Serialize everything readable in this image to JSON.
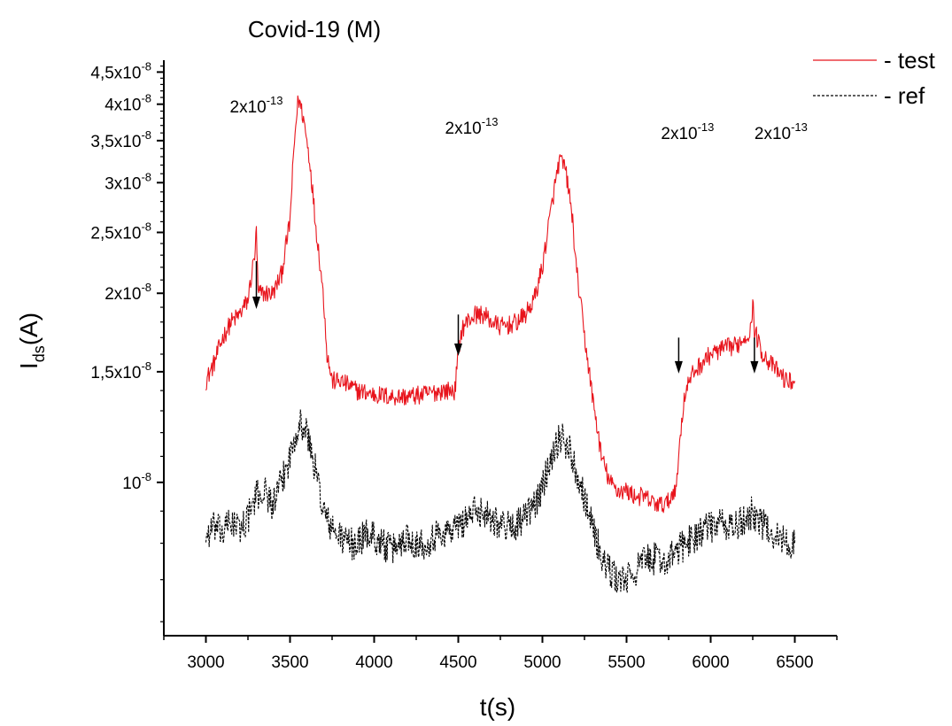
{
  "chart_data": {
    "type": "line",
    "title": "Covid-19 (M)",
    "xlabel": "t(s)",
    "ylabel": "I",
    "ylabel_sub": "ds",
    "ylabel_suffix": "(A)",
    "y_scale": "log",
    "xlim": [
      2750,
      6750
    ],
    "ylim": [
      5.7e-09,
      4.7e-08
    ],
    "grid": false,
    "legend_position": "top-right",
    "x_ticks": [
      3000,
      3500,
      4000,
      4500,
      5000,
      5500,
      6000,
      6500
    ],
    "x_tick_labels": [
      "3000",
      "3500",
      "4000",
      "4500",
      "5000",
      "5500",
      "6000",
      "6500"
    ],
    "y_ticks": [
      {
        "value": 1e-08,
        "mantissa": "10",
        "exponent": "-8"
      },
      {
        "value": 1.5e-08,
        "mantissa": "1,5x10",
        "exponent": "-8"
      },
      {
        "value": 2e-08,
        "mantissa": "2x10",
        "exponent": "-8"
      },
      {
        "value": 2.5e-08,
        "mantissa": "2,5x10",
        "exponent": "-8"
      },
      {
        "value": 3e-08,
        "mantissa": "3x10",
        "exponent": "-8"
      },
      {
        "value": 3.5e-08,
        "mantissa": "3,5x10",
        "exponent": "-8"
      },
      {
        "value": 4e-08,
        "mantissa": "4x10",
        "exponent": "-8"
      },
      {
        "value": 4.5e-08,
        "mantissa": "4,5x10",
        "exponent": "-8"
      }
    ],
    "annotations": [
      {
        "mantissa": "2x10",
        "exponent": "-13",
        "x": 3300,
        "arrow_from": 2.25e-08,
        "arrow_to": 1.9e-08
      },
      {
        "mantissa": "2x10",
        "exponent": "-13",
        "x": 4500,
        "arrow_from": 1.85e-08,
        "arrow_to": 1.6e-08
      },
      {
        "mantissa": "2x10",
        "exponent": "-13",
        "x": 5810,
        "arrow_from": 1.7e-08,
        "arrow_to": 1.5e-08
      },
      {
        "mantissa": "2x10",
        "exponent": "-13",
        "x": 6260,
        "arrow_from": 1.7e-08,
        "arrow_to": 1.5e-08
      }
    ],
    "series": [
      {
        "name": "- test",
        "color": "#e8141c",
        "style": "solid",
        "x": [
          3000,
          3050,
          3100,
          3150,
          3200,
          3250,
          3290,
          3300,
          3310,
          3350,
          3400,
          3450,
          3500,
          3530,
          3550,
          3580,
          3620,
          3650,
          3700,
          3720,
          3750,
          3800,
          3900,
          4000,
          4100,
          4200,
          4300,
          4400,
          4480,
          4500,
          4520,
          4550,
          4600,
          4650,
          4700,
          4750,
          4800,
          4850,
          4900,
          4950,
          5000,
          5050,
          5100,
          5130,
          5150,
          5180,
          5200,
          5250,
          5300,
          5350,
          5400,
          5450,
          5500,
          5550,
          5600,
          5650,
          5700,
          5750,
          5800,
          5820,
          5850,
          5900,
          5950,
          6000,
          6050,
          6100,
          6150,
          6200,
          6240,
          6250,
          6260,
          6300,
          6350,
          6400,
          6450,
          6500
        ],
        "y": [
          1.45e-08,
          1.55e-08,
          1.7e-08,
          1.8e-08,
          1.85e-08,
          1.95e-08,
          2.3e-08,
          2.5e-08,
          2e-08,
          2e-08,
          2e-08,
          2.15e-08,
          2.6e-08,
          3.6e-08,
          4.1e-08,
          3.8e-08,
          3.2e-08,
          2.6e-08,
          1.95e-08,
          1.6e-08,
          1.45e-08,
          1.45e-08,
          1.4e-08,
          1.38e-08,
          1.37e-08,
          1.37e-08,
          1.38e-08,
          1.4e-08,
          1.4e-08,
          1.6e-08,
          1.75e-08,
          1.8e-08,
          1.85e-08,
          1.85e-08,
          1.8e-08,
          1.77e-08,
          1.78e-08,
          1.8e-08,
          1.85e-08,
          1.95e-08,
          2.2e-08,
          2.7e-08,
          3.25e-08,
          3.2e-08,
          3e-08,
          2.6e-08,
          2.2e-08,
          1.7e-08,
          1.35e-08,
          1.1e-08,
          1e-08,
          9.7e-09,
          9.7e-09,
          9.5e-09,
          9.5e-09,
          9.3e-09,
          9.2e-09,
          9.3e-09,
          1e-08,
          1.2e-08,
          1.4e-08,
          1.5e-08,
          1.55e-08,
          1.6e-08,
          1.62e-08,
          1.64e-08,
          1.65e-08,
          1.7e-08,
          1.75e-08,
          1.95e-08,
          1.75e-08,
          1.62e-08,
          1.55e-08,
          1.5e-08,
          1.45e-08,
          1.45e-08
        ]
      },
      {
        "name": "- ref",
        "color": "#000000",
        "style": "dashed",
        "x": [
          3000,
          3050,
          3100,
          3150,
          3200,
          3250,
          3300,
          3350,
          3400,
          3450,
          3500,
          3550,
          3600,
          3650,
          3700,
          3750,
          3800,
          3850,
          3900,
          3950,
          4000,
          4050,
          4100,
          4150,
          4200,
          4250,
          4300,
          4350,
          4400,
          4450,
          4500,
          4550,
          4600,
          4650,
          4700,
          4750,
          4800,
          4850,
          4900,
          4950,
          5000,
          5050,
          5100,
          5150,
          5200,
          5250,
          5300,
          5350,
          5400,
          5450,
          5500,
          5550,
          5600,
          5650,
          5700,
          5750,
          5800,
          5850,
          5900,
          5950,
          6000,
          6050,
          6100,
          6150,
          6200,
          6250,
          6300,
          6350,
          6400,
          6450,
          6500
        ],
        "y": [
          8.2e-09,
          8.5e-09,
          8.3e-09,
          8.7e-09,
          8.4e-09,
          8.8e-09,
          9.5e-09,
          9.7e-09,
          9.2e-09,
          1e-08,
          1.1e-08,
          1.25e-08,
          1.2e-08,
          1.05e-08,
          9e-09,
          8.4e-09,
          8.2e-09,
          8e-09,
          8e-09,
          8.3e-09,
          8.2e-09,
          8e-09,
          7.8e-09,
          8e-09,
          8.2e-09,
          8e-09,
          8e-09,
          8.2e-09,
          8.3e-09,
          8.4e-09,
          8.5e-09,
          8.8e-09,
          9e-09,
          9e-09,
          8.8e-09,
          8.6e-09,
          8.5e-09,
          8.6e-09,
          8.8e-09,
          9.2e-09,
          9.8e-09,
          1.1e-08,
          1.18e-08,
          1.15e-08,
          1.05e-08,
          9.5e-09,
          8.5e-09,
          7.6e-09,
          7.2e-09,
          7e-09,
          7e-09,
          7.2e-09,
          7.5e-09,
          7.6e-09,
          7.5e-09,
          7.5e-09,
          7.8e-09,
          8e-09,
          8.2e-09,
          8.4e-09,
          8.5e-09,
          8.6e-09,
          8.5e-09,
          8.5e-09,
          8.7e-09,
          9e-09,
          8.6e-09,
          8.4e-09,
          8.2e-09,
          8e-09,
          8e-09
        ]
      }
    ]
  }
}
